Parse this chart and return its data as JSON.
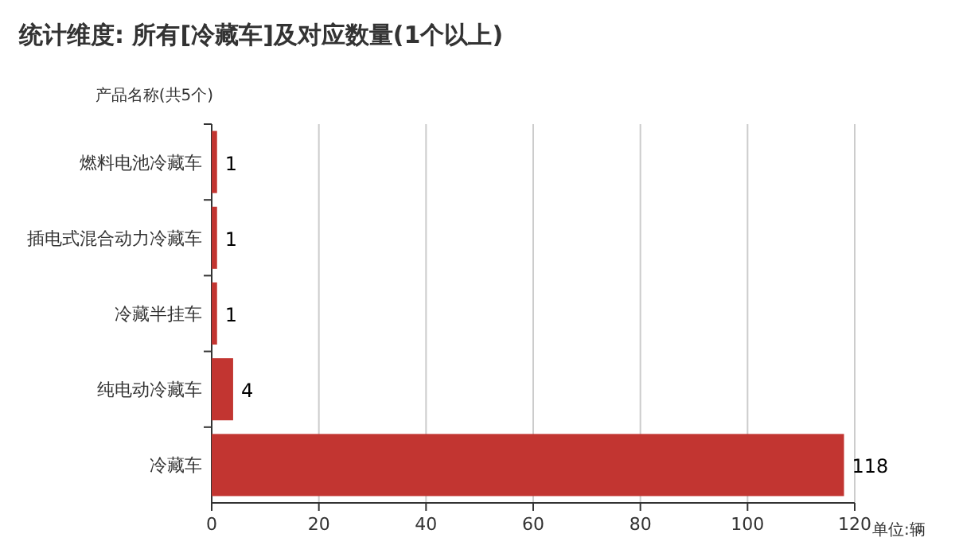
{
  "chart_data": {
    "type": "bar",
    "orientation": "horizontal",
    "title": "统计维度: 所有[冷藏车]及对应数量(1个以上)",
    "ylabel": "产品名称(共5个)",
    "xlabel": "单位:辆",
    "categories": [
      "燃料电池冷藏车",
      "插电式混合动力冷藏车",
      "冷藏半挂车",
      "纯电动冷藏车",
      "冷藏车"
    ],
    "values": [
      1,
      1,
      1,
      4,
      118
    ],
    "color": "#c23531",
    "xlim": [
      0,
      120
    ],
    "xticks": [
      0,
      20,
      40,
      60,
      80,
      100,
      120
    ],
    "grid": "x",
    "data_labels": true
  }
}
